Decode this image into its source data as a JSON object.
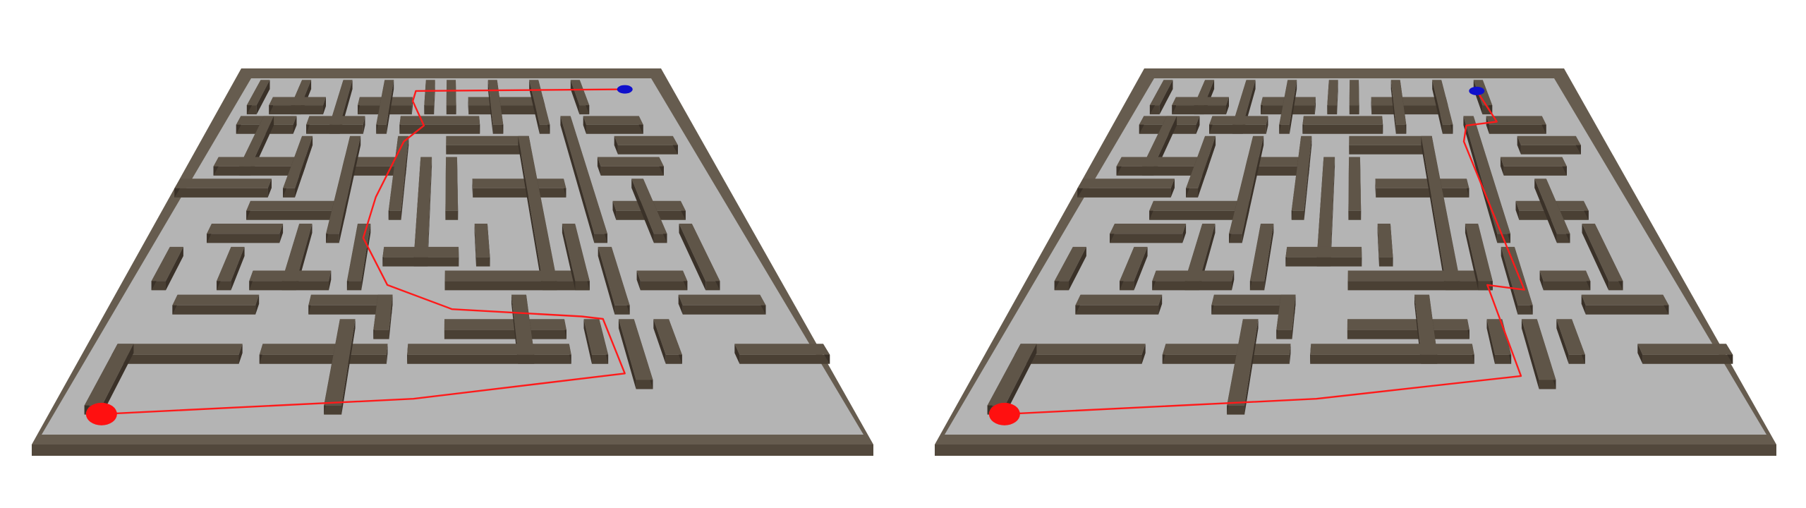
{
  "colors": {
    "background": "#ffffff",
    "floor": "#b4b4b4",
    "wall_top": "#5f5548",
    "wall_front": "#4a4034",
    "wall_side": "#3a3128",
    "border_top": "#665c4f",
    "border_front": "#52483c",
    "path": "#ff1a1a",
    "start": "#ff1010",
    "goal": "#1010cc"
  },
  "panels": [
    {
      "id": "left",
      "path_label": "solution-path-1"
    },
    {
      "id": "right",
      "path_label": "solution-path-2"
    }
  ]
}
